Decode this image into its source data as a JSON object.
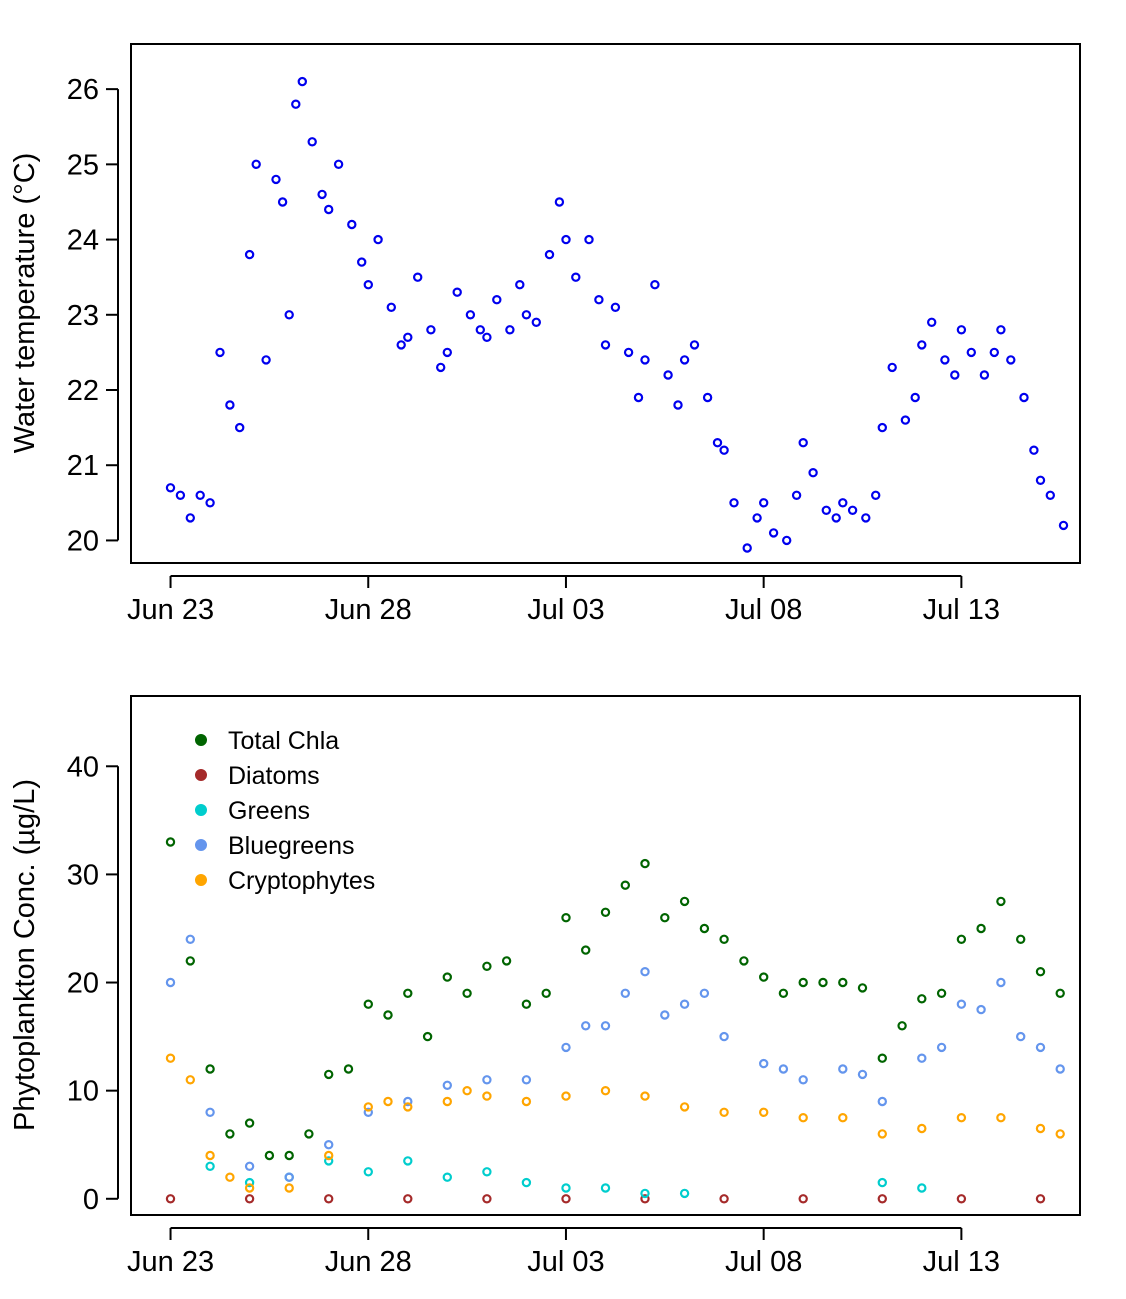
{
  "chart_data": [
    {
      "type": "scatter",
      "title": "",
      "xlabel": "",
      "ylabel": "Water temperature (°C)",
      "x_ticks": [
        "Jun 23",
        "Jun 28",
        "Jul 03",
        "Jul 08",
        "Jul 13"
      ],
      "x_range": [
        "2021-06-22",
        "2021-07-16"
      ],
      "ylim": [
        19.7,
        26.6
      ],
      "y_ticks": [
        "20",
        "21",
        "22",
        "23",
        "24",
        "25",
        "26"
      ],
      "grid": false,
      "marker": "open-circle",
      "series": [
        {
          "color": "#0000ee",
          "points": [
            [
              "2021-06-23",
              20.7
            ],
            [
              "2021-06-23 06:00",
              20.6
            ],
            [
              "2021-06-23 12:00",
              20.3
            ],
            [
              "2021-06-23 18:00",
              20.6
            ],
            [
              "2021-06-24",
              20.5
            ],
            [
              "2021-06-24 06:00",
              22.5
            ],
            [
              "2021-06-24 12:00",
              21.8
            ],
            [
              "2021-06-24 18:00",
              21.5
            ],
            [
              "2021-06-25",
              23.8
            ],
            [
              "2021-06-25 04:00",
              25.0
            ],
            [
              "2021-06-25 10:00",
              22.4
            ],
            [
              "2021-06-25 16:00",
              24.8
            ],
            [
              "2021-06-25 20:00",
              24.5
            ],
            [
              "2021-06-26",
              23.0
            ],
            [
              "2021-06-26 04:00",
              25.8
            ],
            [
              "2021-06-26 08:00",
              26.1
            ],
            [
              "2021-06-26 14:00",
              25.3
            ],
            [
              "2021-06-26 20:00",
              24.6
            ],
            [
              "2021-06-27",
              24.4
            ],
            [
              "2021-06-27 06:00",
              25.0
            ],
            [
              "2021-06-27 14:00",
              24.2
            ],
            [
              "2021-06-27 20:00",
              23.7
            ],
            [
              "2021-06-28",
              23.4
            ],
            [
              "2021-06-28 06:00",
              24.0
            ],
            [
              "2021-06-28 14:00",
              23.1
            ],
            [
              "2021-06-28 20:00",
              22.6
            ],
            [
              "2021-06-29",
              22.7
            ],
            [
              "2021-06-29 06:00",
              23.5
            ],
            [
              "2021-06-29 14:00",
              22.8
            ],
            [
              "2021-06-29 20:00",
              22.3
            ],
            [
              "2021-06-30",
              22.5
            ],
            [
              "2021-06-30 06:00",
              23.3
            ],
            [
              "2021-06-30 14:00",
              23.0
            ],
            [
              "2021-06-30 20:00",
              22.8
            ],
            [
              "2021-07-01",
              22.7
            ],
            [
              "2021-07-01 06:00",
              23.2
            ],
            [
              "2021-07-01 14:00",
              22.8
            ],
            [
              "2021-07-01 20:00",
              23.4
            ],
            [
              "2021-07-02",
              23.0
            ],
            [
              "2021-07-02 06:00",
              22.9
            ],
            [
              "2021-07-02 14:00",
              23.8
            ],
            [
              "2021-07-02 20:00",
              24.5
            ],
            [
              "2021-07-03",
              24.0
            ],
            [
              "2021-07-03 06:00",
              23.5
            ],
            [
              "2021-07-03 14:00",
              24.0
            ],
            [
              "2021-07-03 20:00",
              23.2
            ],
            [
              "2021-07-04",
              22.6
            ],
            [
              "2021-07-04 06:00",
              23.1
            ],
            [
              "2021-07-04 14:00",
              22.5
            ],
            [
              "2021-07-04 20:00",
              21.9
            ],
            [
              "2021-07-05",
              22.4
            ],
            [
              "2021-07-05 06:00",
              23.4
            ],
            [
              "2021-07-05 14:00",
              22.2
            ],
            [
              "2021-07-05 20:00",
              21.8
            ],
            [
              "2021-07-06",
              22.4
            ],
            [
              "2021-07-06 06:00",
              22.6
            ],
            [
              "2021-07-06 14:00",
              21.9
            ],
            [
              "2021-07-06 20:00",
              21.3
            ],
            [
              "2021-07-07",
              21.2
            ],
            [
              "2021-07-07 06:00",
              20.5
            ],
            [
              "2021-07-07 14:00",
              19.9
            ],
            [
              "2021-07-07 20:00",
              20.3
            ],
            [
              "2021-07-08",
              20.5
            ],
            [
              "2021-07-08 06:00",
              20.1
            ],
            [
              "2021-07-08 14:00",
              20.0
            ],
            [
              "2021-07-08 20:00",
              20.6
            ],
            [
              "2021-07-09",
              21.3
            ],
            [
              "2021-07-09 06:00",
              20.9
            ],
            [
              "2021-07-09 14:00",
              20.4
            ],
            [
              "2021-07-09 20:00",
              20.3
            ],
            [
              "2021-07-10",
              20.5
            ],
            [
              "2021-07-10 06:00",
              20.4
            ],
            [
              "2021-07-10 14:00",
              20.3
            ],
            [
              "2021-07-10 20:00",
              20.6
            ],
            [
              "2021-07-11",
              21.5
            ],
            [
              "2021-07-11 06:00",
              22.3
            ],
            [
              "2021-07-11 14:00",
              21.6
            ],
            [
              "2021-07-11 20:00",
              21.9
            ],
            [
              "2021-07-12",
              22.6
            ],
            [
              "2021-07-12 06:00",
              22.9
            ],
            [
              "2021-07-12 14:00",
              22.4
            ],
            [
              "2021-07-12 20:00",
              22.2
            ],
            [
              "2021-07-13",
              22.8
            ],
            [
              "2021-07-13 06:00",
              22.5
            ],
            [
              "2021-07-13 14:00",
              22.2
            ],
            [
              "2021-07-13 20:00",
              22.5
            ],
            [
              "2021-07-14",
              22.8
            ],
            [
              "2021-07-14 06:00",
              22.4
            ],
            [
              "2021-07-14 14:00",
              21.9
            ],
            [
              "2021-07-14 20:00",
              21.2
            ],
            [
              "2021-07-15",
              20.8
            ],
            [
              "2021-07-15 06:00",
              20.6
            ],
            [
              "2021-07-15 14:00",
              20.2
            ]
          ]
        }
      ]
    },
    {
      "type": "scatter",
      "title": "",
      "xlabel": "",
      "ylabel": "Phytoplankton Conc. (µg/L)",
      "x_ticks": [
        "Jun 23",
        "Jun 28",
        "Jul 03",
        "Jul 08",
        "Jul 13"
      ],
      "x_range": [
        "2021-06-22",
        "2021-07-16"
      ],
      "ylim": [
        -1.5,
        46.5
      ],
      "y_ticks": [
        "0",
        "10",
        "20",
        "30",
        "40"
      ],
      "grid": false,
      "legend_position": "top-left",
      "marker": "open-circle",
      "series": [
        {
          "name": "Total Chla",
          "color": "#006400",
          "points": [
            [
              "2021-06-23",
              33.0
            ],
            [
              "2021-06-23 12:00",
              22.0
            ],
            [
              "2021-06-24",
              12.0
            ],
            [
              "2021-06-24 12:00",
              6.0
            ],
            [
              "2021-06-25",
              7.0
            ],
            [
              "2021-06-25 12:00",
              4.0
            ],
            [
              "2021-06-26",
              4.0
            ],
            [
              "2021-06-26 12:00",
              6.0
            ],
            [
              "2021-06-27",
              11.5
            ],
            [
              "2021-06-27 12:00",
              12.0
            ],
            [
              "2021-06-28",
              18.0
            ],
            [
              "2021-06-28 12:00",
              17.0
            ],
            [
              "2021-06-29",
              19.0
            ],
            [
              "2021-06-29 12:00",
              15.0
            ],
            [
              "2021-06-30",
              20.5
            ],
            [
              "2021-06-30 12:00",
              19.0
            ],
            [
              "2021-07-01",
              21.5
            ],
            [
              "2021-07-01 12:00",
              22.0
            ],
            [
              "2021-07-02",
              18.0
            ],
            [
              "2021-07-02 12:00",
              19.0
            ],
            [
              "2021-07-03",
              26.0
            ],
            [
              "2021-07-03 12:00",
              23.0
            ],
            [
              "2021-07-04",
              26.5
            ],
            [
              "2021-07-04 12:00",
              29.0
            ],
            [
              "2021-07-05",
              31.0
            ],
            [
              "2021-07-05 12:00",
              26.0
            ],
            [
              "2021-07-06",
              27.5
            ],
            [
              "2021-07-06 12:00",
              25.0
            ],
            [
              "2021-07-07",
              24.0
            ],
            [
              "2021-07-07 12:00",
              22.0
            ],
            [
              "2021-07-08",
              20.5
            ],
            [
              "2021-07-08 12:00",
              19.0
            ],
            [
              "2021-07-09",
              20.0
            ],
            [
              "2021-07-09 12:00",
              20.0
            ],
            [
              "2021-07-10",
              20.0
            ],
            [
              "2021-07-10 12:00",
              19.5
            ],
            [
              "2021-07-11",
              13.0
            ],
            [
              "2021-07-11 12:00",
              16.0
            ],
            [
              "2021-07-12",
              18.5
            ],
            [
              "2021-07-12 12:00",
              19.0
            ],
            [
              "2021-07-13",
              24.0
            ],
            [
              "2021-07-13 12:00",
              25.0
            ],
            [
              "2021-07-14",
              27.5
            ],
            [
              "2021-07-14 12:00",
              24.0
            ],
            [
              "2021-07-15",
              21.0
            ],
            [
              "2021-07-15 12:00",
              19.0
            ]
          ]
        },
        {
          "name": "Diatoms",
          "color": "#a52a2a",
          "points": [
            [
              "2021-06-23",
              0.0
            ],
            [
              "2021-06-25",
              0.0
            ],
            [
              "2021-06-27",
              0.0
            ],
            [
              "2021-06-29",
              0.0
            ],
            [
              "2021-07-01",
              0.0
            ],
            [
              "2021-07-03",
              0.0
            ],
            [
              "2021-07-05",
              0.0
            ],
            [
              "2021-07-07",
              0.0
            ],
            [
              "2021-07-09",
              0.0
            ],
            [
              "2021-07-11",
              0.0
            ],
            [
              "2021-07-13",
              0.0
            ],
            [
              "2021-07-15",
              0.0
            ]
          ]
        },
        {
          "name": "Greens",
          "color": "#00cdcd",
          "points": [
            [
              "2021-06-24",
              3.0
            ],
            [
              "2021-06-25",
              1.5
            ],
            [
              "2021-06-26",
              2.0
            ],
            [
              "2021-06-27",
              3.5
            ],
            [
              "2021-06-28",
              2.5
            ],
            [
              "2021-06-29",
              3.5
            ],
            [
              "2021-06-30",
              2.0
            ],
            [
              "2021-07-01",
              2.5
            ],
            [
              "2021-07-02",
              1.5
            ],
            [
              "2021-07-03",
              1.0
            ],
            [
              "2021-07-04",
              1.0
            ],
            [
              "2021-07-05",
              0.5
            ],
            [
              "2021-07-06",
              0.5
            ],
            [
              "2021-07-11",
              1.5
            ],
            [
              "2021-07-12",
              1.0
            ]
          ]
        },
        {
          "name": "Bluegreens",
          "color": "#6495ed",
          "points": [
            [
              "2021-06-23",
              20.0
            ],
            [
              "2021-06-23 12:00",
              24.0
            ],
            [
              "2021-06-24",
              8.0
            ],
            [
              "2021-06-25",
              3.0
            ],
            [
              "2021-06-26",
              2.0
            ],
            [
              "2021-06-27",
              5.0
            ],
            [
              "2021-06-28",
              8.0
            ],
            [
              "2021-06-29",
              9.0
            ],
            [
              "2021-06-30",
              10.5
            ],
            [
              "2021-07-01",
              11.0
            ],
            [
              "2021-07-02",
              11.0
            ],
            [
              "2021-07-03",
              14.0
            ],
            [
              "2021-07-03 12:00",
              16.0
            ],
            [
              "2021-07-04",
              16.0
            ],
            [
              "2021-07-04 12:00",
              19.0
            ],
            [
              "2021-07-05",
              21.0
            ],
            [
              "2021-07-05 12:00",
              17.0
            ],
            [
              "2021-07-06",
              18.0
            ],
            [
              "2021-07-06 12:00",
              19.0
            ],
            [
              "2021-07-07",
              15.0
            ],
            [
              "2021-07-08",
              12.5
            ],
            [
              "2021-07-08 12:00",
              12.0
            ],
            [
              "2021-07-09",
              11.0
            ],
            [
              "2021-07-10",
              12.0
            ],
            [
              "2021-07-10 12:00",
              11.5
            ],
            [
              "2021-07-11",
              9.0
            ],
            [
              "2021-07-12",
              13.0
            ],
            [
              "2021-07-12 12:00",
              14.0
            ],
            [
              "2021-07-13",
              18.0
            ],
            [
              "2021-07-13 12:00",
              17.5
            ],
            [
              "2021-07-14",
              20.0
            ],
            [
              "2021-07-14 12:00",
              15.0
            ],
            [
              "2021-07-15",
              14.0
            ],
            [
              "2021-07-15 12:00",
              12.0
            ]
          ]
        },
        {
          "name": "Cryptophytes",
          "color": "#ffa500",
          "points": [
            [
              "2021-06-23",
              13.0
            ],
            [
              "2021-06-23 12:00",
              11.0
            ],
            [
              "2021-06-24",
              4.0
            ],
            [
              "2021-06-24 12:00",
              2.0
            ],
            [
              "2021-06-25",
              1.0
            ],
            [
              "2021-06-26",
              1.0
            ],
            [
              "2021-06-27",
              4.0
            ],
            [
              "2021-06-28",
              8.5
            ],
            [
              "2021-06-28 12:00",
              9.0
            ],
            [
              "2021-06-29",
              8.5
            ],
            [
              "2021-06-30",
              9.0
            ],
            [
              "2021-06-30 12:00",
              10.0
            ],
            [
              "2021-07-01",
              9.5
            ],
            [
              "2021-07-02",
              9.0
            ],
            [
              "2021-07-03",
              9.5
            ],
            [
              "2021-07-04",
              10.0
            ],
            [
              "2021-07-05",
              9.5
            ],
            [
              "2021-07-06",
              8.5
            ],
            [
              "2021-07-07",
              8.0
            ],
            [
              "2021-07-08",
              8.0
            ],
            [
              "2021-07-09",
              7.5
            ],
            [
              "2021-07-10",
              7.5
            ],
            [
              "2021-07-11",
              6.0
            ],
            [
              "2021-07-12",
              6.5
            ],
            [
              "2021-07-13",
              7.5
            ],
            [
              "2021-07-14",
              7.5
            ],
            [
              "2021-07-15",
              6.5
            ],
            [
              "2021-07-15 12:00",
              6.0
            ]
          ]
        }
      ]
    }
  ]
}
